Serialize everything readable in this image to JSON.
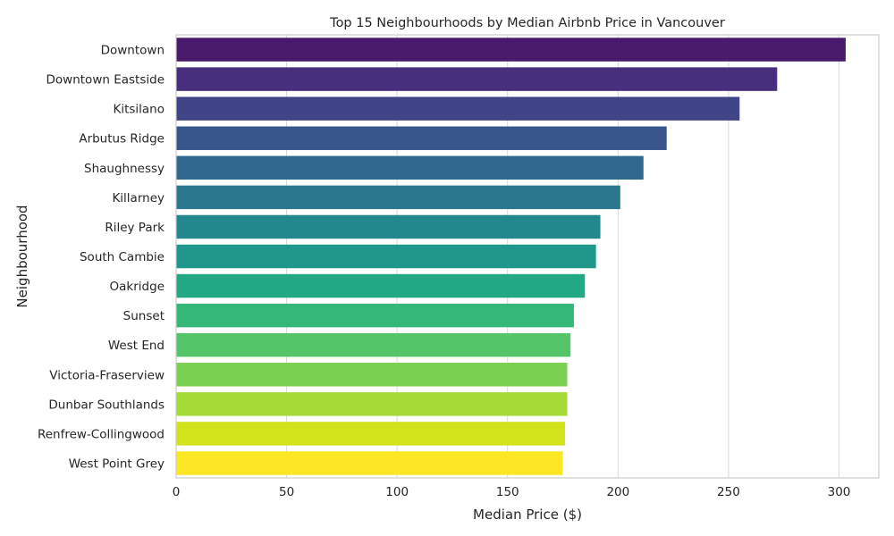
{
  "chart_data": {
    "type": "bar",
    "orientation": "horizontal",
    "title": "Top 15 Neighbourhoods by Median Airbnb Price in Vancouver",
    "xlabel": "Median Price ($)",
    "ylabel": "Neighbourhood",
    "xlim": [
      0,
      318
    ],
    "xticks": [
      0,
      50,
      100,
      150,
      200,
      250,
      300
    ],
    "grid": true,
    "categories": [
      "Downtown",
      "Downtown Eastside",
      "Kitsilano",
      "Arbutus Ridge",
      "Shaughnessy",
      "Killarney",
      "Riley Park",
      "South Cambie",
      "Oakridge",
      "Sunset",
      "West End",
      "Victoria-Fraserview",
      "Dunbar Southlands",
      "Renfrew-Collingwood",
      "West Point Grey"
    ],
    "values": [
      303,
      272,
      255,
      222,
      211.5,
      201,
      192,
      190,
      185,
      180,
      178.5,
      177,
      177,
      176,
      175
    ],
    "colors": [
      "#481a6c",
      "#472f7d",
      "#414487",
      "#39568c",
      "#31688e",
      "#2a788e",
      "#23888e",
      "#1f988b",
      "#22a884",
      "#35b779",
      "#54c568",
      "#7ad151",
      "#a5db36",
      "#d2e21b",
      "#fde725"
    ]
  }
}
